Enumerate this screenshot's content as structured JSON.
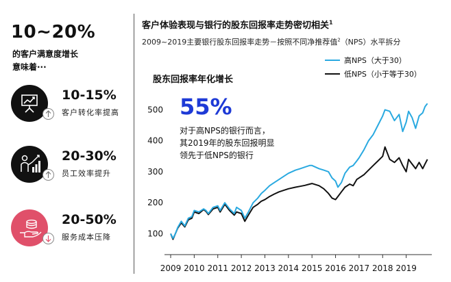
{
  "left": {
    "headline": "10~20%",
    "subline1": "的客户满意度增长",
    "subline2": "意味着···",
    "stats": [
      {
        "value": "10-15%",
        "desc": "客户转化率提高",
        "circle_color": "#111111",
        "icon": "presentation-board-icon",
        "trend": "up"
      },
      {
        "value": "20-30%",
        "desc": "员工效率提升",
        "circle_color": "#111111",
        "icon": "worker-growth-icon",
        "trend": "up"
      },
      {
        "value": "20-50%",
        "desc": "服务成本压降",
        "circle_color": "#e0506a",
        "icon": "hand-coins-icon",
        "trend": "down"
      }
    ]
  },
  "right": {
    "title": "客户体验表现与银行的股东回报率走势密切相关",
    "title_sup": "1",
    "subtitle_a": "2009~2019主要银行股东回报率走势－按照不同净推荐值",
    "subtitle_sup": "2",
    "subtitle_b": "（NPS）水平拆分",
    "callout_value": "55%",
    "callout_lines": [
      "对于高NPS的银行而言，",
      "其2019年的股东回报明显",
      "领先于低NPS的银行"
    ]
  },
  "chart_data": {
    "type": "line",
    "title": "股东回报率年化增长",
    "xlabel": "",
    "ylabel": "",
    "x_ticks": [
      2009,
      2010,
      2011,
      2012,
      2013,
      2014,
      2015,
      2016,
      2017,
      2018,
      2019
    ],
    "xlim": [
      2009,
      2020.0
    ],
    "y_ticks": [
      100,
      200,
      300,
      400,
      500
    ],
    "ylim": [
      70,
      545
    ],
    "grid": false,
    "legend_position": "top-right",
    "series": [
      {
        "name": "高NPS（大于30）",
        "color": "#29a9e0",
        "x": [
          2009.0,
          2009.1,
          2009.2,
          2009.3,
          2009.45,
          2009.6,
          2009.75,
          2009.9,
          2010.0,
          2010.2,
          2010.4,
          2010.5,
          2010.6,
          2010.8,
          2011.0,
          2011.1,
          2011.3,
          2011.5,
          2011.7,
          2011.8,
          2012.0,
          2012.15,
          2012.3,
          2012.5,
          2012.7,
          2012.85,
          2013.0,
          2013.2,
          2013.4,
          2013.6,
          2013.8,
          2014.0,
          2014.3,
          2014.5,
          2014.7,
          2014.9,
          2015.0,
          2015.3,
          2015.5,
          2015.7,
          2015.85,
          2016.0,
          2016.1,
          2016.25,
          2016.4,
          2016.6,
          2016.75,
          2016.9,
          2017.0,
          2017.2,
          2017.4,
          2017.6,
          2017.8,
          2018.0,
          2018.1,
          2018.3,
          2018.5,
          2018.7,
          2018.85,
          2019.0,
          2019.1,
          2019.25,
          2019.4,
          2019.55,
          2019.7,
          2019.8,
          2019.9
        ],
        "values": [
          100,
          85,
          100,
          120,
          140,
          125,
          150,
          155,
          175,
          170,
          180,
          175,
          165,
          185,
          190,
          175,
          200,
          180,
          165,
          185,
          175,
          150,
          170,
          200,
          215,
          230,
          240,
          255,
          265,
          275,
          285,
          295,
          305,
          310,
          315,
          320,
          320,
          310,
          305,
          300,
          280,
          270,
          250,
          265,
          295,
          315,
          320,
          335,
          345,
          370,
          400,
          420,
          450,
          480,
          500,
          495,
          465,
          485,
          430,
          460,
          495,
          475,
          440,
          480,
          490,
          510,
          520
        ]
      },
      {
        "name": "低NPS（小于等于30）",
        "color": "#111111",
        "x": [
          2009.0,
          2009.1,
          2009.2,
          2009.3,
          2009.45,
          2009.6,
          2009.75,
          2009.9,
          2010.0,
          2010.2,
          2010.4,
          2010.5,
          2010.6,
          2010.8,
          2011.0,
          2011.1,
          2011.3,
          2011.5,
          2011.7,
          2011.8,
          2012.0,
          2012.15,
          2012.3,
          2012.5,
          2012.7,
          2012.85,
          2013.0,
          2013.2,
          2013.4,
          2013.6,
          2013.8,
          2014.0,
          2014.3,
          2014.5,
          2014.7,
          2014.9,
          2015.0,
          2015.3,
          2015.5,
          2015.7,
          2015.85,
          2016.0,
          2016.1,
          2016.25,
          2016.4,
          2016.6,
          2016.75,
          2016.9,
          2017.0,
          2017.2,
          2017.4,
          2017.6,
          2017.8,
          2018.0,
          2018.1,
          2018.3,
          2018.5,
          2018.7,
          2018.85,
          2019.0,
          2019.1,
          2019.25,
          2019.4,
          2019.55,
          2019.7,
          2019.8,
          2019.9
        ],
        "values": [
          100,
          82,
          100,
          118,
          135,
          122,
          145,
          150,
          170,
          165,
          178,
          172,
          162,
          180,
          185,
          170,
          195,
          175,
          160,
          170,
          165,
          140,
          160,
          185,
          195,
          205,
          210,
          220,
          228,
          235,
          240,
          245,
          250,
          253,
          256,
          260,
          262,
          255,
          245,
          230,
          215,
          210,
          220,
          235,
          250,
          260,
          255,
          275,
          280,
          290,
          305,
          320,
          335,
          350,
          380,
          340,
          330,
          345,
          320,
          300,
          340,
          325,
          310,
          330,
          310,
          325,
          340
        ]
      }
    ]
  }
}
